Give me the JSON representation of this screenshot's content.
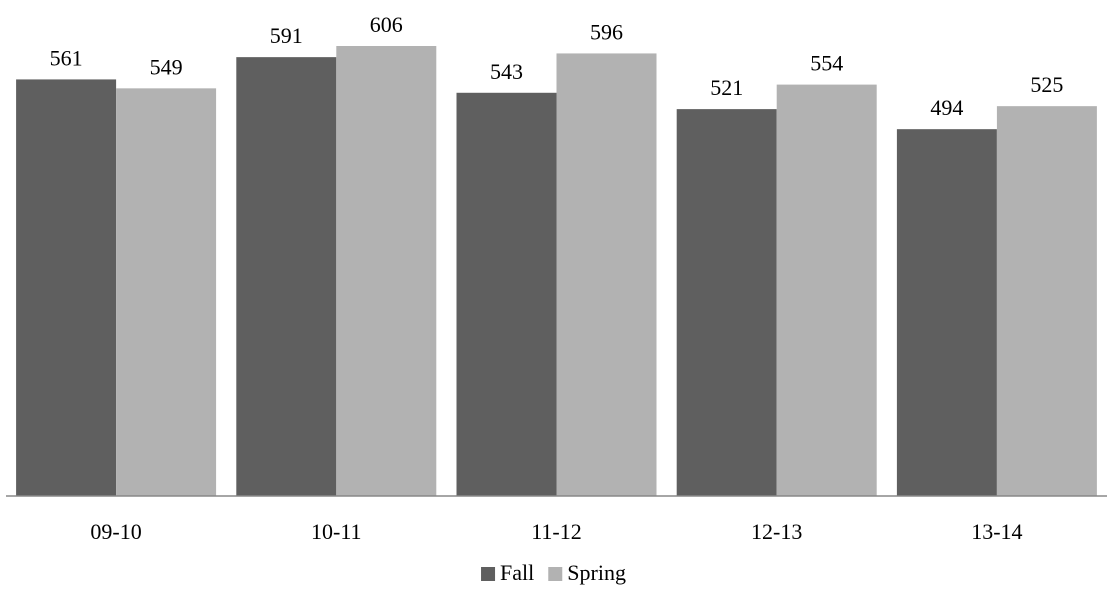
{
  "chart_data": {
    "type": "bar",
    "title": "",
    "xlabel": "",
    "ylabel": "",
    "categories": [
      "09-10",
      "10-11",
      "11-12",
      "12-13",
      "13-14"
    ],
    "series": [
      {
        "name": "Fall",
        "values": [
          561,
          591,
          543,
          521,
          494
        ],
        "color": "#5f5f5f"
      },
      {
        "name": "Spring",
        "values": [
          549,
          606,
          596,
          554,
          525
        ],
        "color": "#b2b2b2"
      }
    ],
    "data_labels": true,
    "ylim": [
      0,
      606
    ],
    "grid": false,
    "y_axis_visible": false,
    "legend_position": "bottom"
  },
  "colors": {
    "axis": "#888888",
    "text": "#000000"
  }
}
